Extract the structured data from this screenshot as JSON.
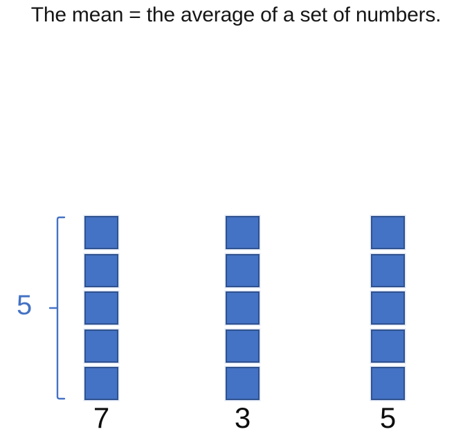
{
  "title": "The mean = the average of a set of numbers.",
  "bracket": {
    "label": "5"
  },
  "columns": [
    {
      "label": "7",
      "squares": 5
    },
    {
      "label": "3",
      "squares": 5
    },
    {
      "label": "5",
      "squares": 5
    }
  ],
  "colors": {
    "square_fill": "#4472C4",
    "square_border": "#2F528F",
    "accent_blue": "#4472C4",
    "title_text": "#161616",
    "label_text": "#0d0d0d"
  },
  "chart_data": {
    "type": "bar",
    "title": "The mean = the average of a set of numbers.",
    "categories": [
      "7",
      "3",
      "5"
    ],
    "values": [
      5,
      5,
      5
    ],
    "unit": "unit squares per column",
    "bracket_value": 5,
    "legend": "none",
    "note": "Three columns each show 5 unit squares; the left bracket labeled 5 marks the equalized (mean) height of the original values 7, 3 and 5."
  }
}
